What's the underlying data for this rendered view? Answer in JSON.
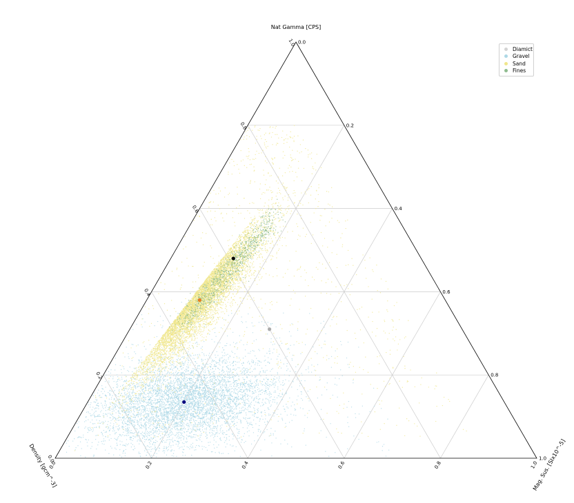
{
  "chart_data": {
    "type": "ternary-scatter",
    "axes": {
      "top": {
        "label": "Nat Gamma [CPS]",
        "range": [
          0,
          1
        ]
      },
      "bottom_right": {
        "label": "Mag. Sus. [SIx10^-5]",
        "range": [
          0,
          1
        ]
      },
      "bottom_left": {
        "label": "Density [gcm^-3]",
        "range": [
          0,
          1
        ]
      }
    },
    "ticks": {
      "left_edge": [
        "0.0",
        "0.2",
        "0.4",
        "0.6",
        "0.8",
        "1.0"
      ],
      "right_edge": [
        "1.0",
        "0.8",
        "0.6",
        "0.4",
        "0.2",
        "0.0"
      ],
      "bottom_edge": [
        "0.0",
        "0.2",
        "0.4",
        "0.6",
        "0.8",
        "1.0"
      ]
    },
    "grid": true,
    "legend_placement": "top-right",
    "series": [
      {
        "name": "Diamict",
        "color": "#d3d3d3",
        "centroid": {
          "nat_gamma": 0.31,
          "mag_sus": 0.29,
          "density": 0.4
        },
        "spread": {
          "nat_gamma": 0.05,
          "mag_sus": 0.06
        },
        "count": 0
      },
      {
        "name": "Gravel",
        "color": "#add8e6",
        "centroid": {
          "nat_gamma": 0.135,
          "mag_sus": 0.2,
          "density": 0.665
        },
        "spread": {
          "nat_gamma": 0.055,
          "mag_sus": 0.09
        },
        "count": 6000
      },
      {
        "name": "Sand",
        "color": "#f0e68c",
        "centroid": {
          "nat_gamma": 0.38,
          "mag_sus": 0.11,
          "density": 0.51
        },
        "spread": {
          "nat_gamma": 0.09,
          "mag_sus": 0.035
        },
        "count": 7500
      },
      {
        "name": "Fines",
        "color": "#8fbc8f",
        "centroid": {
          "nat_gamma": 0.48,
          "mag_sus": 0.13,
          "density": 0.39
        },
        "spread": {
          "nat_gamma": 0.06,
          "mag_sus": 0.02
        },
        "count": 900
      }
    ],
    "centroid_markers": [
      {
        "color": "#000000",
        "nat_gamma": 0.48,
        "mag_sus": 0.13
      },
      {
        "color": "#e67e22",
        "nat_gamma": 0.38,
        "mag_sus": 0.11
      },
      {
        "color": "#aaaaaa",
        "nat_gamma": 0.31,
        "mag_sus": 0.29
      },
      {
        "color": "#000080",
        "nat_gamma": 0.135,
        "mag_sus": 0.2
      }
    ]
  },
  "legend": {
    "items": [
      {
        "label": "Diamict",
        "color": "#d3d3d3"
      },
      {
        "label": "Gravel",
        "color": "#add8e6"
      },
      {
        "label": "Sand",
        "color": "#f0e68c"
      },
      {
        "label": "Fines",
        "color": "#8fbc8f"
      }
    ]
  }
}
